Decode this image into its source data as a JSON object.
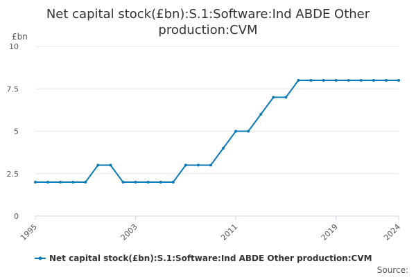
{
  "chart_data": {
    "type": "line",
    "title_lines": [
      "Net capital stock(£bn):S.1:Software:Ind ABDE Other",
      "production:CVM"
    ],
    "ylabel": "£bn",
    "ylim": [
      0,
      10
    ],
    "yticks": [
      0,
      2.5,
      5,
      7.5,
      10
    ],
    "ytick_labels": [
      "0",
      "2.5",
      "5",
      "7.5",
      "10"
    ],
    "xlim": [
      1995,
      2024
    ],
    "xticks": [
      1995,
      2003,
      2011,
      2019,
      2024
    ],
    "xtick_labels": [
      "1995",
      "2003",
      "2011",
      "2019",
      "2024"
    ],
    "series": [
      {
        "name": "Net capital stock(£bn):S.1:Software:Ind ABDE Other production:CVM",
        "color": "#0a7ab8",
        "x": [
          1995,
          1996,
          1997,
          1998,
          1999,
          2000,
          2001,
          2002,
          2003,
          2004,
          2005,
          2006,
          2007,
          2008,
          2009,
          2010,
          2011,
          2012,
          2013,
          2014,
          2015,
          2016,
          2017,
          2018,
          2019,
          2020,
          2021,
          2022,
          2023,
          2024
        ],
        "y": [
          2,
          2,
          2,
          2,
          2,
          3,
          3,
          2,
          2,
          2,
          2,
          2,
          3,
          3,
          3,
          4,
          5,
          5,
          6,
          7,
          7,
          8,
          8,
          8,
          8,
          8,
          8,
          8,
          8,
          8
        ]
      }
    ],
    "legend_position": "bottom",
    "source_label": "Source:"
  }
}
